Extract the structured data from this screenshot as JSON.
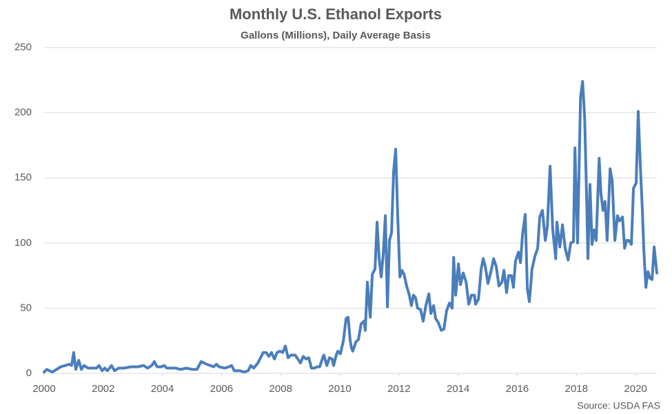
{
  "chart_data": {
    "type": "line",
    "title": "Monthly U.S. Ethanol Exports",
    "subtitle": "Gallons (Millions), Daily Average Basis",
    "source": "Source: USDA FAS",
    "color": "#4a7ebb",
    "grid": true,
    "xlim": [
      2000,
      2020.72
    ],
    "xticks": [
      2000,
      2002,
      2004,
      2006,
      2008,
      2010,
      2012,
      2014,
      2016,
      2018,
      2020
    ],
    "ylim": [
      0,
      250
    ],
    "yticks": [
      0,
      50,
      100,
      150,
      200,
      250
    ],
    "x": [
      2000.0,
      2000.09,
      2000.28,
      2000.56,
      2000.72,
      2000.84,
      2000.93,
      2001.0,
      2001.07,
      2001.17,
      2001.26,
      2001.35,
      2001.49,
      2001.77,
      2001.86,
      2001.96,
      2002.05,
      2002.14,
      2002.28,
      2002.38,
      2002.52,
      2002.7,
      2002.94,
      2003.17,
      2003.36,
      2003.5,
      2003.64,
      2003.73,
      2003.82,
      2003.96,
      2004.06,
      2004.15,
      2004.45,
      2004.62,
      2004.8,
      2005.03,
      2005.17,
      2005.31,
      2005.5,
      2005.62,
      2005.73,
      2005.83,
      2005.92,
      2006.11,
      2006.25,
      2006.34,
      2006.43,
      2006.62,
      2006.76,
      2006.9,
      2006.99,
      2007.09,
      2007.23,
      2007.32,
      2007.41,
      2007.51,
      2007.6,
      2007.69,
      2007.79,
      2007.88,
      2007.97,
      2008.07,
      2008.16,
      2008.25,
      2008.35,
      2008.49,
      2008.58,
      2008.67,
      2008.76,
      2008.86,
      2008.95,
      2009.04,
      2009.14,
      2009.23,
      2009.32,
      2009.42,
      2009.46,
      2009.56,
      2009.65,
      2009.74,
      2009.79,
      2009.88,
      2009.93,
      2010.02,
      2010.12,
      2010.21,
      2010.28,
      2010.35,
      2010.4,
      2010.44,
      2010.54,
      2010.63,
      2010.72,
      2010.82,
      2010.86,
      2010.93,
      2011.03,
      2011.1,
      2011.19,
      2011.26,
      2011.33,
      2011.4,
      2011.47,
      2011.54,
      2011.61,
      2011.68,
      2011.75,
      2011.82,
      2011.89,
      2011.96,
      2012.03,
      2012.1,
      2012.17,
      2012.26,
      2012.35,
      2012.42,
      2012.49,
      2012.56,
      2012.63,
      2012.73,
      2012.82,
      2012.91,
      2013.01,
      2013.08,
      2013.17,
      2013.24,
      2013.33,
      2013.43,
      2013.52,
      2013.61,
      2013.71,
      2013.8,
      2013.85,
      2013.92,
      2014.01,
      2014.08,
      2014.17,
      2014.27,
      2014.36,
      2014.45,
      2014.55,
      2014.59,
      2014.69,
      2014.78,
      2014.85,
      2014.92,
      2015.01,
      2015.11,
      2015.2,
      2015.29,
      2015.38,
      2015.48,
      2015.55,
      2015.64,
      2015.71,
      2015.8,
      2015.87,
      2015.94,
      2016.04,
      2016.11,
      2016.18,
      2016.27,
      2016.34,
      2016.41,
      2016.5,
      2016.6,
      2016.69,
      2016.76,
      2016.85,
      2016.95,
      2017.02,
      2017.11,
      2017.2,
      2017.3,
      2017.34,
      2017.44,
      2017.53,
      2017.62,
      2017.72,
      2017.81,
      2017.9,
      2017.95,
      2018.04,
      2018.14,
      2018.21,
      2018.28,
      2018.35,
      2018.39,
      2018.46,
      2018.53,
      2018.6,
      2018.67,
      2018.77,
      2018.83,
      2018.9,
      2018.97,
      2019.04,
      2019.14,
      2019.21,
      2019.3,
      2019.39,
      2019.46,
      2019.56,
      2019.63,
      2019.7,
      2019.77,
      2019.86,
      2019.93,
      2020.02,
      2020.09,
      2020.16,
      2020.23,
      2020.28,
      2020.35,
      2020.42,
      2020.49,
      2020.56,
      2020.63,
      2020.72
    ],
    "values": [
      1,
      3,
      1,
      5,
      6,
      7,
      6,
      16,
      3,
      10,
      3,
      6,
      4,
      4,
      6,
      2,
      4,
      2,
      6,
      2,
      4,
      4,
      5,
      5,
      6,
      4,
      6,
      9,
      5,
      5,
      6,
      4,
      4,
      3,
      4,
      3,
      3,
      9,
      7,
      6,
      5,
      7,
      5,
      4,
      5,
      6,
      2,
      2,
      1,
      2,
      6,
      4,
      8,
      12,
      16,
      16,
      13,
      16,
      11,
      16,
      17,
      16,
      21,
      12,
      14,
      14,
      11,
      8,
      13,
      11,
      12,
      4,
      4,
      5,
      5,
      12,
      14,
      6,
      12,
      11,
      6,
      14,
      17,
      15,
      25,
      42,
      43,
      25,
      19,
      17,
      24,
      26,
      38,
      40,
      33,
      70,
      43,
      76,
      80,
      116,
      88,
      74,
      92,
      121,
      51,
      102,
      108,
      155,
      172,
      120,
      74,
      79,
      76,
      67,
      60,
      52,
      60,
      58,
      50,
      49,
      40,
      52,
      61,
      46,
      52,
      42,
      39,
      33,
      34,
      48,
      54,
      50,
      89,
      60,
      84,
      68,
      77,
      70,
      53,
      60,
      60,
      53,
      57,
      80,
      88,
      82,
      69,
      78,
      88,
      82,
      67,
      70,
      79,
      62,
      75,
      75,
      66,
      86,
      93,
      85,
      107,
      122,
      65,
      55,
      80,
      90,
      96,
      120,
      125,
      102,
      113,
      159,
      110,
      88,
      116,
      97,
      114,
      96,
      87,
      100,
      101,
      173,
      100,
      212,
      224,
      196,
      130,
      88,
      145,
      99,
      110,
      102,
      165,
      138,
      125,
      132,
      102,
      157,
      148,
      102,
      121,
      117,
      120,
      96,
      102,
      102,
      99,
      142,
      146,
      201,
      160,
      125,
      95,
      66,
      78,
      73,
      72,
      97,
      77
    ]
  }
}
